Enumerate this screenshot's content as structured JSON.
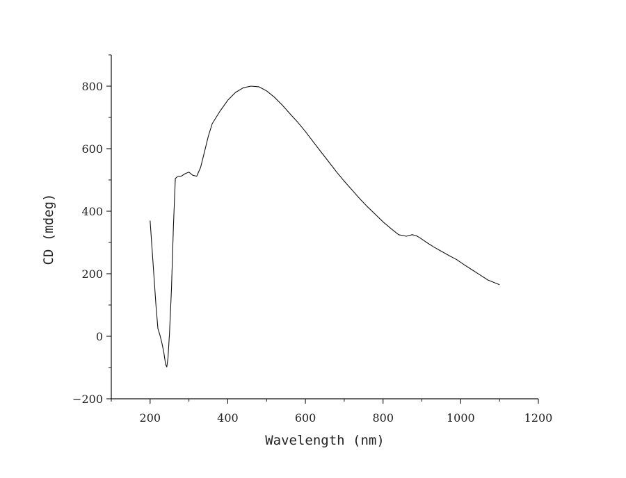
{
  "chart_data": {
    "type": "line",
    "title": "",
    "xlabel": "Wavelength (nm)",
    "ylabel": "CD (mdeg)",
    "xlim": [
      100,
      1200
    ],
    "ylim": [
      -200,
      900
    ],
    "xticks": [
      200,
      400,
      600,
      800,
      1000,
      1200
    ],
    "yticks": [
      -200,
      0,
      200,
      400,
      600,
      800
    ],
    "grid": false,
    "legend": "none",
    "line_color": "#111111",
    "series": [
      {
        "x": [
          200,
          205,
          210,
          215,
          220,
          225,
          230,
          235,
          240,
          243,
          246,
          250,
          255,
          260,
          265,
          270,
          280,
          290,
          300,
          310,
          320,
          330,
          340,
          350,
          360,
          380,
          400,
          420,
          440,
          460,
          480,
          500,
          520,
          540,
          560,
          580,
          600,
          620,
          640,
          660,
          680,
          700,
          720,
          740,
          760,
          780,
          800,
          820,
          840,
          860,
          875,
          885,
          895,
          910,
          930,
          950,
          970,
          990,
          1010,
          1030,
          1050,
          1070,
          1090,
          1100
        ],
        "y": [
          370,
          280,
          190,
          100,
          25,
          5,
          -20,
          -50,
          -90,
          -98,
          -70,
          10,
          150,
          350,
          505,
          510,
          512,
          520,
          525,
          515,
          512,
          540,
          590,
          640,
          680,
          720,
          755,
          780,
          795,
          800,
          798,
          785,
          765,
          740,
          712,
          685,
          655,
          622,
          590,
          558,
          526,
          496,
          468,
          440,
          414,
          390,
          366,
          345,
          325,
          320,
          325,
          322,
          315,
          302,
          286,
          272,
          258,
          245,
          228,
          212,
          196,
          180,
          170,
          165
        ]
      }
    ]
  }
}
